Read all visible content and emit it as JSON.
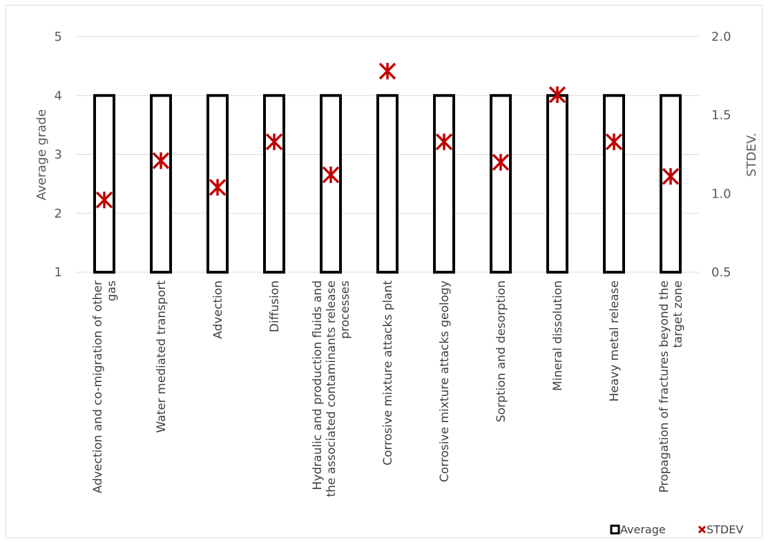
{
  "chart_data": {
    "type": "bar",
    "categories": [
      [
        "Advection and co-migration of other",
        "gas"
      ],
      [
        "Water mediated transport"
      ],
      [
        "Advection"
      ],
      [
        "Diffusion"
      ],
      [
        "Hydraulic and production fluids and",
        "the associated contaminants release",
        "processes"
      ],
      [
        "Corrosive mixture attacks plant"
      ],
      [
        "Corrosive mixture attacks geology"
      ],
      [
        "Sorption and desorption"
      ],
      [
        "Mineral dissolution"
      ],
      [
        "Heavy metal release"
      ],
      [
        "Propagation of fractures beyond the",
        "target zone"
      ]
    ],
    "series": [
      {
        "name": "Average",
        "axis": "left",
        "type": "bar",
        "color": "#000000",
        "values": [
          4,
          4,
          4,
          4,
          4,
          4,
          4,
          4,
          4,
          4,
          4
        ]
      },
      {
        "name": "STDEV",
        "axis": "right",
        "type": "scatter",
        "marker": "x",
        "color": "#c00000",
        "values": [
          0.96,
          1.21,
          1.04,
          1.33,
          1.12,
          1.78,
          1.33,
          1.2,
          1.63,
          1.33,
          1.11
        ]
      }
    ],
    "ylabel": "Average grade",
    "y2label": "STDEV.",
    "ylim": [
      1,
      5
    ],
    "y2lim": [
      0.5,
      2.0
    ],
    "yticks": [
      "1",
      "2",
      "3",
      "4",
      "5"
    ],
    "y2ticks": [
      "0.5",
      "1.0",
      "1.5",
      "2.0"
    ],
    "grid": true,
    "legend_position": "bottom-right"
  }
}
